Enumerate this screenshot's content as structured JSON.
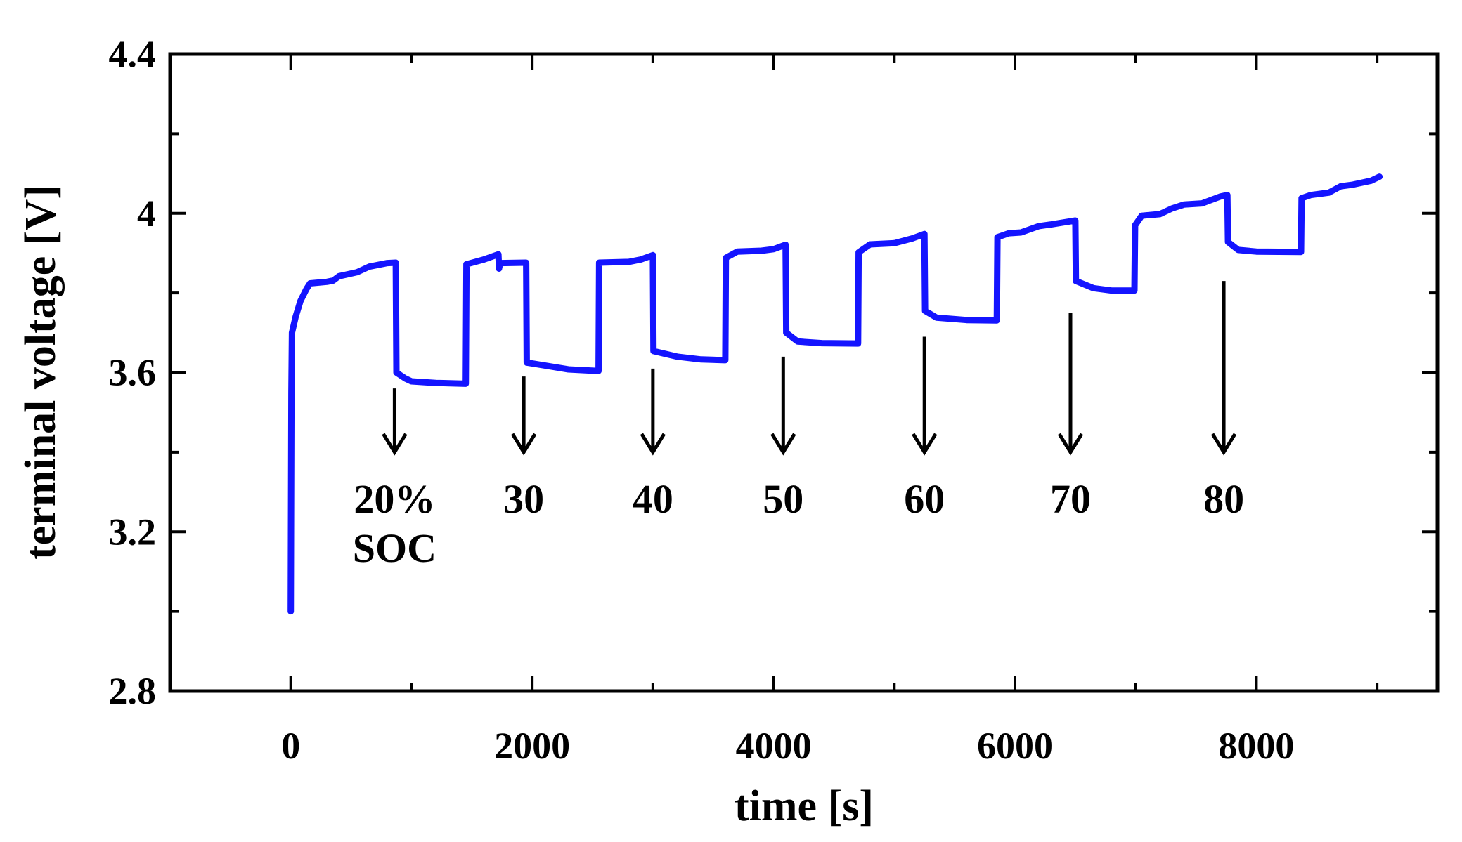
{
  "chart_data": {
    "type": "line",
    "xlabel": "time [s]",
    "ylabel": "terminal voltage [V]",
    "xlim": [
      -1000,
      9500
    ],
    "ylim": [
      2.8,
      4.4
    ],
    "x_ticks": [
      0,
      2000,
      4000,
      6000,
      8000
    ],
    "x_tick_labels": [
      "0",
      "2000",
      "4000",
      "6000",
      "8000"
    ],
    "y_ticks": [
      2.8,
      3.2,
      3.6,
      4.0,
      4.4
    ],
    "y_tick_labels": [
      "2.8",
      "3.2",
      "3.6",
      "4",
      "4.4"
    ],
    "grid": false,
    "line_color": "#1414ff",
    "series": [
      {
        "points": [
          [
            0,
            3.0
          ],
          [
            5,
            3.55
          ],
          [
            10,
            3.7
          ],
          [
            40,
            3.74
          ],
          [
            80,
            3.78
          ],
          [
            130,
            3.81
          ],
          [
            160,
            3.824
          ],
          [
            300,
            3.828
          ],
          [
            350,
            3.831
          ],
          [
            400,
            3.842
          ],
          [
            550,
            3.852
          ],
          [
            650,
            3.866
          ],
          [
            800,
            3.875
          ],
          [
            870,
            3.876
          ],
          [
            875,
            3.6
          ],
          [
            950,
            3.585
          ],
          [
            1000,
            3.578
          ],
          [
            1200,
            3.574
          ],
          [
            1450,
            3.572
          ],
          [
            1455,
            3.872
          ],
          [
            1600,
            3.884
          ],
          [
            1720,
            3.897
          ],
          [
            1725,
            3.861
          ],
          [
            1735,
            3.875
          ],
          [
            1950,
            3.876
          ],
          [
            1955,
            3.625
          ],
          [
            2100,
            3.618
          ],
          [
            2300,
            3.608
          ],
          [
            2550,
            3.604
          ],
          [
            2555,
            3.876
          ],
          [
            2800,
            3.878
          ],
          [
            2900,
            3.884
          ],
          [
            3000,
            3.895
          ],
          [
            3005,
            3.654
          ],
          [
            3200,
            3.64
          ],
          [
            3400,
            3.633
          ],
          [
            3600,
            3.631
          ],
          [
            3605,
            3.888
          ],
          [
            3700,
            3.904
          ],
          [
            3900,
            3.906
          ],
          [
            4000,
            3.91
          ],
          [
            4100,
            3.921
          ],
          [
            4105,
            3.7
          ],
          [
            4200,
            3.678
          ],
          [
            4400,
            3.674
          ],
          [
            4700,
            3.673
          ],
          [
            4705,
            3.902
          ],
          [
            4800,
            3.922
          ],
          [
            5000,
            3.925
          ],
          [
            5150,
            3.937
          ],
          [
            5250,
            3.948
          ],
          [
            5255,
            3.755
          ],
          [
            5350,
            3.738
          ],
          [
            5600,
            3.732
          ],
          [
            5850,
            3.731
          ],
          [
            5855,
            3.94
          ],
          [
            5950,
            3.95
          ],
          [
            6050,
            3.952
          ],
          [
            6200,
            3.968
          ],
          [
            6300,
            3.972
          ],
          [
            6500,
            3.982
          ],
          [
            6505,
            3.83
          ],
          [
            6650,
            3.812
          ],
          [
            6800,
            3.806
          ],
          [
            6990,
            3.806
          ],
          [
            6995,
            3.97
          ],
          [
            7050,
            3.994
          ],
          [
            7200,
            3.998
          ],
          [
            7300,
            4.012
          ],
          [
            7400,
            4.022
          ],
          [
            7550,
            4.025
          ],
          [
            7700,
            4.042
          ],
          [
            7760,
            4.046
          ],
          [
            7765,
            3.928
          ],
          [
            7850,
            3.908
          ],
          [
            8000,
            3.904
          ],
          [
            8370,
            3.903
          ],
          [
            8375,
            4.038
          ],
          [
            8450,
            4.046
          ],
          [
            8600,
            4.052
          ],
          [
            8700,
            4.068
          ],
          [
            8800,
            4.072
          ],
          [
            8950,
            4.082
          ],
          [
            9020,
            4.092
          ]
        ]
      }
    ],
    "annotations": [
      {
        "lines": [
          "20%",
          "SOC"
        ],
        "arrow_x": 860,
        "arrow_from": 3.56,
        "arrow_to": 3.4
      },
      {
        "lines": [
          "30"
        ],
        "arrow_x": 1930,
        "arrow_from": 3.59,
        "arrow_to": 3.4
      },
      {
        "lines": [
          "40"
        ],
        "arrow_x": 3000,
        "arrow_from": 3.61,
        "arrow_to": 3.4
      },
      {
        "lines": [
          "50"
        ],
        "arrow_x": 4080,
        "arrow_from": 3.64,
        "arrow_to": 3.4
      },
      {
        "lines": [
          "60"
        ],
        "arrow_x": 5250,
        "arrow_from": 3.69,
        "arrow_to": 3.4
      },
      {
        "lines": [
          "70"
        ],
        "arrow_x": 6460,
        "arrow_from": 3.75,
        "arrow_to": 3.4
      },
      {
        "lines": [
          "80"
        ],
        "arrow_x": 7730,
        "arrow_from": 3.83,
        "arrow_to": 3.4
      }
    ]
  }
}
